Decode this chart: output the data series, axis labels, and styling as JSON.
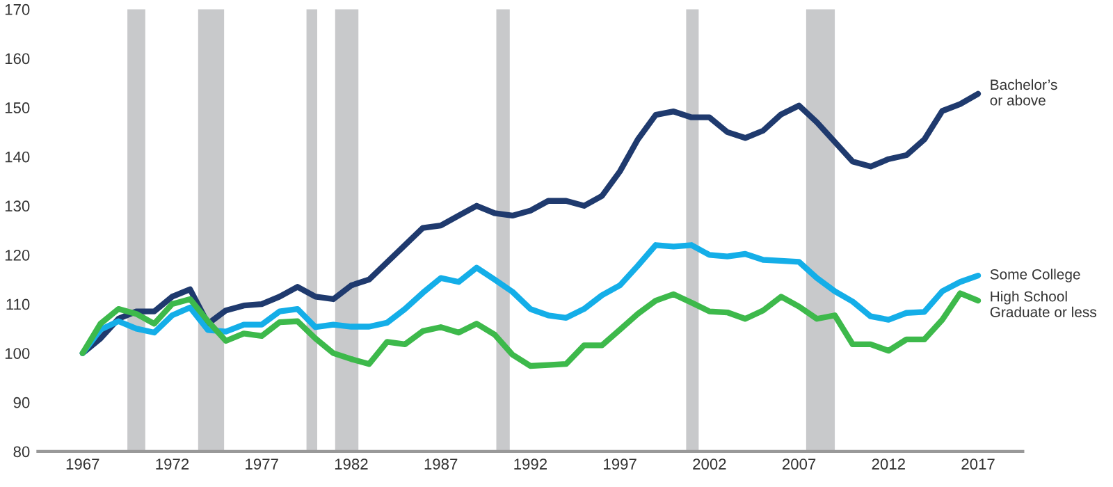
{
  "chart_data": {
    "type": "line",
    "x": [
      1967,
      1968,
      1969,
      1970,
      1971,
      1972,
      1973,
      1974,
      1975,
      1976,
      1977,
      1978,
      1979,
      1980,
      1981,
      1982,
      1983,
      1984,
      1985,
      1986,
      1987,
      1988,
      1989,
      1990,
      1991,
      1992,
      1993,
      1994,
      1995,
      1996,
      1997,
      1998,
      1999,
      2000,
      2001,
      2002,
      2003,
      2004,
      2005,
      2006,
      2007,
      2008,
      2009,
      2010,
      2011,
      2012,
      2013,
      2014,
      2015,
      2016,
      2017
    ],
    "series": [
      {
        "name": "Bachelor’s\nor above",
        "color": "#1f3a6e",
        "values": [
          100,
          103,
          107,
          108.5,
          108.5,
          111.5,
          113,
          106,
          108.7,
          109.7,
          110,
          111.5,
          113.5,
          111.5,
          111,
          113.8,
          115,
          118.5,
          122,
          125.5,
          126,
          128,
          130,
          128.5,
          128,
          129,
          131,
          131,
          130,
          132,
          137,
          143.5,
          148.5,
          149.2,
          148,
          148,
          145,
          143.8,
          145.3,
          148.6,
          150.4,
          147,
          143,
          139,
          138,
          139.5,
          140.3,
          143.5,
          149.3,
          150.7,
          152.8
        ]
      },
      {
        "name": "Some College",
        "color": "#14aee8",
        "values": [
          100,
          104.8,
          106.5,
          105,
          104.2,
          107.7,
          109.3,
          104.7,
          104.4,
          105.8,
          105.8,
          108.5,
          109,
          105.3,
          105.8,
          105.4,
          105.4,
          106.2,
          109,
          112.3,
          115.3,
          114.5,
          117.4,
          115,
          112.5,
          109,
          107.7,
          107.2,
          109,
          111.8,
          113.8,
          117.8,
          122,
          121.7,
          122,
          120,
          119.7,
          120.2,
          119,
          118.8,
          118.6,
          115.3,
          112.6,
          110.5,
          107.5,
          106.8,
          108.2,
          108.4,
          112.6,
          114.5,
          115.8
        ]
      },
      {
        "name": "High School\nGraduate or less",
        "color": "#3db94b",
        "values": [
          100,
          106,
          109,
          108,
          106,
          110,
          111,
          106.5,
          102.5,
          104,
          103.5,
          106.3,
          106.5,
          103,
          100,
          98.8,
          97.8,
          102.3,
          101.8,
          104.5,
          105.3,
          104.2,
          106,
          103.8,
          99.7,
          97.4,
          97.6,
          97.8,
          101.6,
          101.6,
          104.8,
          108,
          110.7,
          112,
          110.3,
          108.5,
          108.3,
          107,
          108.7,
          111.5,
          109.5,
          107,
          107.7,
          101.8,
          101.8,
          100.5,
          102.8,
          102.8,
          106.8,
          112.2,
          110.7
        ]
      }
    ],
    "xlim": [
      1964.5,
      2019.5
    ],
    "ylim": [
      80,
      170
    ],
    "xticks": [
      1967,
      1972,
      1977,
      1982,
      1987,
      1992,
      1997,
      2002,
      2007,
      2012,
      2017
    ],
    "yticks": [
      80,
      90,
      100,
      110,
      120,
      130,
      140,
      150,
      160,
      170
    ],
    "grid": false,
    "legend": false,
    "bands": [
      {
        "axis": "x",
        "from": 1969.5,
        "to": 1970.5,
        "color": "#c8c9cb"
      },
      {
        "axis": "x",
        "from": 1973.45,
        "to": 1974.9,
        "color": "#c8c9cb"
      },
      {
        "axis": "x",
        "from": 1979.5,
        "to": 1980.1,
        "color": "#c8c9cb"
      },
      {
        "axis": "x",
        "from": 1981.1,
        "to": 1982.4,
        "color": "#c8c9cb"
      },
      {
        "axis": "x",
        "from": 1990.1,
        "to": 1990.85,
        "color": "#c8c9cb"
      },
      {
        "axis": "x",
        "from": 2000.7,
        "to": 2001.4,
        "color": "#c8c9cb"
      },
      {
        "axis": "x",
        "from": 2007.4,
        "to": 2009.0,
        "color": "#c8c9cb"
      }
    ]
  }
}
